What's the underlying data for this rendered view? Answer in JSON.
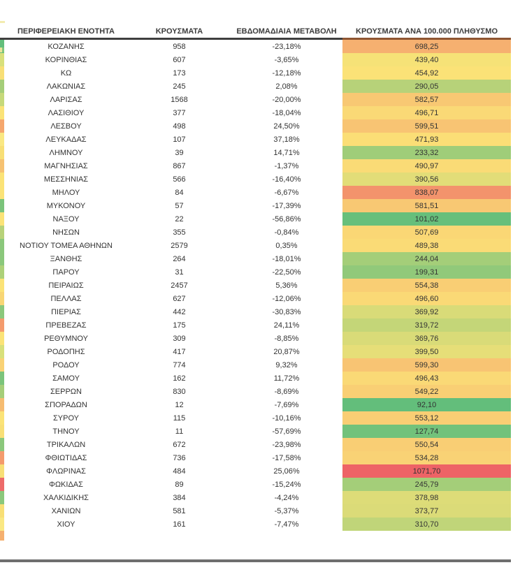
{
  "chart_data": {
    "type": "table",
    "title": "",
    "columns": [
      "ΠΕΡΙΦΕΡΕΙΑΚΗ ΕΝΟΤΗΤΑ",
      "ΚΡΟΥΣΜΑΤΑ",
      "ΕΒΔΟΜΑΔΙΑΙΑ ΜΕΤΑΒΟΛΗ",
      "ΚΡΟΥΣΜΑΤΑ ΑΝΑ 100.000 ΠΛΗΘΥΣΜΟ"
    ],
    "number_format": "comma-decimal (el-GR)",
    "rows": [
      {
        "region": "ΚΟΖΑΝΗΣ",
        "cases": 958,
        "weekly_change_pct": -23.18,
        "per_100k": 698.25,
        "strip_color": "#63BE7B"
      },
      {
        "region": "ΚΟΡΙΝΘΙΑΣ",
        "cases": 607,
        "weekly_change_pct": -3.65,
        "per_100k": 439.4,
        "strip_color": "#D8E07B"
      },
      {
        "region": "ΚΩ",
        "cases": 173,
        "weekly_change_pct": -12.18,
        "per_100k": 454.92,
        "strip_color": "#F8DF76"
      },
      {
        "region": "ΛΑΚΩΝΙΑΣ",
        "cases": 245,
        "weekly_change_pct": 2.08,
        "per_100k": 290.05,
        "strip_color": "#A5CE79"
      },
      {
        "region": "ΛΑΡΙΣΑΣ",
        "cases": 1568,
        "weekly_change_pct": -20.0,
        "per_100k": 582.57,
        "strip_color": "#C6D97A"
      },
      {
        "region": "ΛΑΣΙΘΙΟΥ",
        "cases": 377,
        "weekly_change_pct": -18.04,
        "per_100k": 496.71,
        "strip_color": "#FBE377"
      },
      {
        "region": "ΛΕΣΒΟΥ",
        "cases": 498,
        "weekly_change_pct": 24.5,
        "per_100k": 599.51,
        "strip_color": "#F5A76E"
      },
      {
        "region": "ΛΕΥΚΑΔΑΣ",
        "cases": 107,
        "weekly_change_pct": 37.18,
        "per_100k": 471.93,
        "strip_color": "#FAE883"
      },
      {
        "region": "ΛΗΜΝΟΥ",
        "cases": 39,
        "weekly_change_pct": 14.71,
        "per_100k": 233.32,
        "strip_color": "#F8DF76"
      },
      {
        "region": "ΜΑΓΝΗΣΙΑΣ",
        "cases": 867,
        "weekly_change_pct": -1.37,
        "per_100k": 490.97,
        "strip_color": "#F6C272"
      },
      {
        "region": "ΜΕΣΣΗΝΙΑΣ",
        "cases": 566,
        "weekly_change_pct": -16.4,
        "per_100k": 390.56,
        "strip_color": "#FBE377"
      },
      {
        "region": "ΜΗΛΟΥ",
        "cases": 84,
        "weekly_change_pct": -6.67,
        "per_100k": 838.07,
        "strip_color": "#FBE377"
      },
      {
        "region": "ΜΥΚΟΝΟΥ",
        "cases": 57,
        "weekly_change_pct": -17.39,
        "per_100k": 581.51,
        "strip_color": "#7BC47B"
      },
      {
        "region": "ΝΑΞΟΥ",
        "cases": 22,
        "weekly_change_pct": -56.86,
        "per_100k": 101.02,
        "strip_color": "#FBE377"
      },
      {
        "region": "ΝΗΣΩΝ",
        "cases": 355,
        "weekly_change_pct": -0.84,
        "per_100k": 507.69,
        "strip_color": "#B7D279"
      },
      {
        "region": "ΝΟΤΙΟΥ ΤΟΜΕΑ ΑΘΗΝΩΝ",
        "cases": 2579,
        "weekly_change_pct": 0.35,
        "per_100k": 489.38,
        "strip_color": "#8BC87C"
      },
      {
        "region": "ΞΑΝΘΗΣ",
        "cases": 264,
        "weekly_change_pct": -18.01,
        "per_100k": 244.04,
        "strip_color": "#8BC87C"
      },
      {
        "region": "ΠΑΡΟΥ",
        "cases": 31,
        "weekly_change_pct": -22.5,
        "per_100k": 199.31,
        "strip_color": "#ADD179"
      },
      {
        "region": "ΠΕΙΡΑΙΩΣ",
        "cases": 2457,
        "weekly_change_pct": 5.36,
        "per_100k": 554.38,
        "strip_color": "#FBE377"
      },
      {
        "region": "ΠΕΛΛΑΣ",
        "cases": 627,
        "weekly_change_pct": -12.06,
        "per_100k": 496.6,
        "strip_color": "#F8D675"
      },
      {
        "region": "ΠΙΕΡΙΑΣ",
        "cases": 442,
        "weekly_change_pct": -30.83,
        "per_100k": 369.92,
        "strip_color": "#8BC87C"
      },
      {
        "region": "ΠΡΕΒΕΖΑΣ",
        "cases": 175,
        "weekly_change_pct": 24.11,
        "per_100k": 319.72,
        "strip_color": "#F49B6D"
      },
      {
        "region": "ΡΕΘΥΜΝΟΥ",
        "cases": 309,
        "weekly_change_pct": -8.85,
        "per_100k": 369.76,
        "strip_color": "#FBE377"
      },
      {
        "region": "ΡΟΔΟΠΗΣ",
        "cases": 417,
        "weekly_change_pct": 20.87,
        "per_100k": 399.5,
        "strip_color": "#D8E07B"
      },
      {
        "region": "ΡΟΔΟΥ",
        "cases": 774,
        "weekly_change_pct": 9.32,
        "per_100k": 599.3,
        "strip_color": "#F9D275"
      },
      {
        "region": "ΣΑΜΟΥ",
        "cases": 162,
        "weekly_change_pct": 11.72,
        "per_100k": 496.43,
        "strip_color": "#7BC47B"
      },
      {
        "region": "ΣΕΡΡΩΝ",
        "cases": 830,
        "weekly_change_pct": -8.69,
        "per_100k": 549.22,
        "strip_color": "#A5CE79"
      },
      {
        "region": "ΣΠΟΡΑΔΩΝ",
        "cases": 12,
        "weekly_change_pct": -7.69,
        "per_100k": 92.1,
        "strip_color": "#F6BC71"
      },
      {
        "region": "ΣΥΡΟΥ",
        "cases": 115,
        "weekly_change_pct": -10.16,
        "per_100k": 553.12,
        "strip_color": "#FBE377"
      },
      {
        "region": "ΤΗΝΟΥ",
        "cases": 11,
        "weekly_change_pct": -57.69,
        "per_100k": 127.74,
        "strip_color": "#F8DF76"
      },
      {
        "region": "ΤΡΙΚΑΛΩΝ",
        "cases": 672,
        "weekly_change_pct": -23.98,
        "per_100k": 550.54,
        "strip_color": "#8BC87C"
      },
      {
        "region": "ΦΘΙΩΤΙΔΑΣ",
        "cases": 736,
        "weekly_change_pct": -17.58,
        "per_100k": 534.28,
        "strip_color": "#F49B6D"
      },
      {
        "region": "ΦΛΩΡΙΝΑΣ",
        "cases": 484,
        "weekly_change_pct": 25.06,
        "per_100k": 1071.7,
        "strip_color": "#F8DF76"
      },
      {
        "region": "ΦΩΚΙΔΑΣ",
        "cases": 89,
        "weekly_change_pct": -15.24,
        "per_100k": 245.79,
        "strip_color": "#ED6B6A"
      },
      {
        "region": "ΧΑΛΚΙΔΙΚΗΣ",
        "cases": 384,
        "weekly_change_pct": -4.24,
        "per_100k": 378.98,
        "strip_color": "#8BC87C"
      },
      {
        "region": "ΧΑΝΙΩΝ",
        "cases": 581,
        "weekly_change_pct": -5.37,
        "per_100k": 373.77,
        "strip_color": "#F8DF76"
      },
      {
        "region": "ΧΙΟΥ",
        "cases": 161,
        "weekly_change_pct": -7.47,
        "per_100k": 310.7,
        "strip_color": "#FAE883"
      }
    ],
    "heatmap": {
      "applies_to": "per_100k column and left cut-off column strip",
      "min_value": 92.1,
      "mid_value": 450,
      "max_value": 1071.7,
      "min_color": "#63BE7B",
      "mid_color": "#FBE377",
      "max_color": "#EE6366"
    },
    "layout": {
      "grid": "off",
      "header_rule_color": "#3f3f3f",
      "header_rule_color_heat": "#8f5633",
      "bottom_rule_color": "#6e6e6e"
    }
  },
  "artifacts": {
    "top_left_sliver_color": "#F3ECB0",
    "header_tick_yellow": "#E9E59B",
    "header_tick_green": "#84C77C",
    "bottom_partial_strip_color": "#F5B06F"
  }
}
